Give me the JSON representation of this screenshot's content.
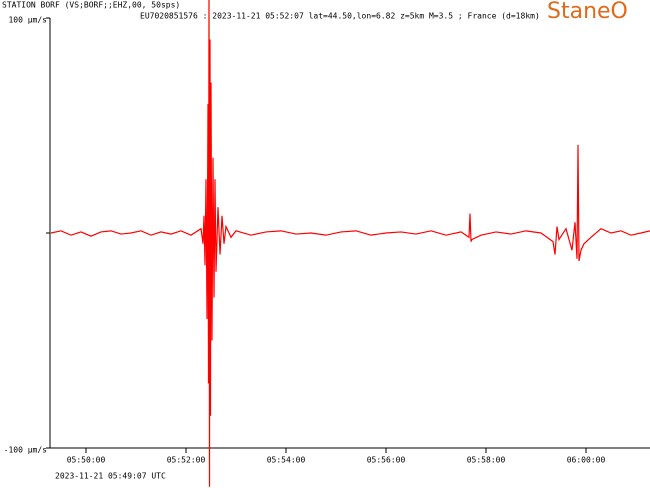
{
  "chart_data": {
    "type": "line",
    "title": "STATION BORF (VS;BORF;;EHZ,00, 50sps)",
    "subtitle": "EU7020851576 : 2023-11-21 05:52:07 lat=44.50,lon=6.82 z=5km M=3.5 ; France (d=18km)",
    "logo": "StaneO",
    "start_label": "2023-11-21 05:49:07 UTC",
    "color": "#ff0000",
    "xlim": [
      349.28,
      361.28
    ],
    "ylim": [
      -100,
      100
    ],
    "xticks": [
      {
        "value": 350,
        "label": "05:50:00"
      },
      {
        "value": 352,
        "label": "05:52:00"
      },
      {
        "value": 354,
        "label": "05:54:00"
      },
      {
        "value": 356,
        "label": "05:56:00"
      },
      {
        "value": 358,
        "label": "05:58:00"
      },
      {
        "value": 360,
        "label": "06:00:00"
      }
    ],
    "yticks": [
      {
        "value": 100,
        "label": "100 µm/s"
      },
      {
        "value": -100,
        "label": "-100 µm/s"
      }
    ],
    "x": [
      349.3,
      349.5,
      349.7,
      349.9,
      350.1,
      350.3,
      350.5,
      350.7,
      350.9,
      351.1,
      351.3,
      351.5,
      351.7,
      351.9,
      352.1,
      352.3,
      352.34,
      352.36,
      352.38,
      352.4,
      352.42,
      352.44,
      352.45,
      352.46,
      352.47,
      352.48,
      352.49,
      352.5,
      352.52,
      352.54,
      352.56,
      352.58,
      352.6,
      352.64,
      352.68,
      352.72,
      352.76,
      352.8,
      352.9,
      353,
      353.3,
      353.6,
      353.9,
      354.2,
      354.5,
      354.8,
      355.1,
      355.4,
      355.7,
      356,
      356.3,
      356.6,
      356.9,
      357.2,
      357.5,
      357.66,
      357.68,
      357.7,
      357.72,
      357.9,
      358.2,
      358.5,
      358.8,
      359.1,
      359.34,
      359.38,
      359.42,
      359.46,
      359.6,
      359.72,
      359.78,
      359.82,
      359.84,
      359.86,
      359.9,
      359.96,
      360.1,
      360.3,
      360.5,
      360.7,
      360.9,
      361.1,
      361.28
    ],
    "values": [
      0,
      1,
      -1,
      0.5,
      -1.5,
      0.5,
      1,
      -0.5,
      0,
      1,
      -1,
      0.5,
      -0.5,
      1,
      -1,
      2,
      -5,
      8,
      -15,
      25,
      -40,
      60,
      -70,
      115,
      -118,
      90,
      -85,
      70,
      -50,
      35,
      -30,
      25,
      -18,
      12,
      -10,
      8,
      -5,
      3,
      -2,
      1,
      -1,
      0.5,
      1,
      -0.5,
      0,
      -1,
      0.5,
      1,
      -1,
      0,
      0.5,
      -0.5,
      1,
      -1,
      0.5,
      -2,
      9,
      -4,
      -3,
      -1,
      0.5,
      -0.5,
      1,
      0,
      -4,
      -10,
      3,
      -3,
      2,
      -8,
      5,
      -12,
      41,
      -13,
      -8,
      -5,
      -2,
      2,
      0,
      1,
      -1,
      0,
      1
    ]
  }
}
